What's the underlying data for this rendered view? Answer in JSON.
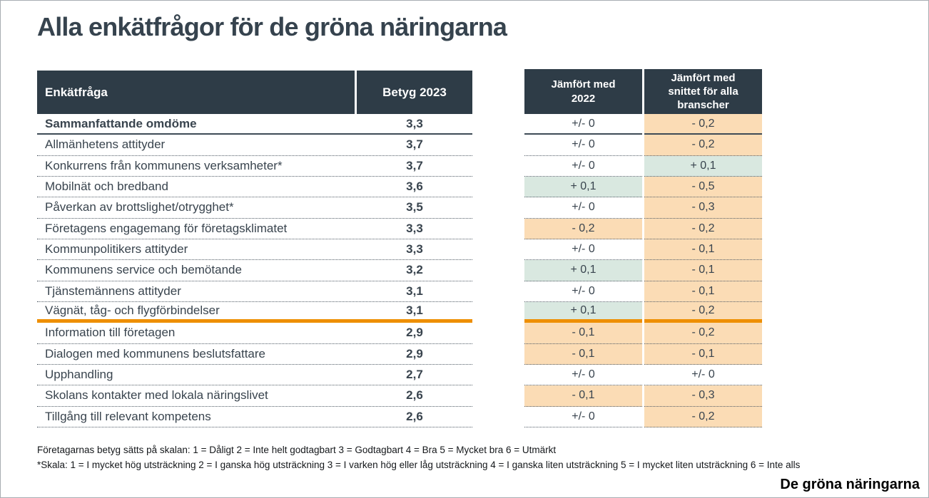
{
  "chart_data": {
    "type": "table",
    "title": "Alla enkätfrågor för de gröna näringarna",
    "columns": [
      "Enkätfråga",
      "Betyg 2023",
      "Jämfört med 2022",
      "Jämfört med snittet för alla branscher"
    ],
    "rows": [
      {
        "question": "Sammanfattande omdöme",
        "betyg": "3,3",
        "vs_2022": "+/- 0",
        "vs_2022_bg": "white",
        "vs_snitt": "- 0,2",
        "vs_snitt_bg": "orange",
        "emphasis": true,
        "separator_after": "solid"
      },
      {
        "question": "Allmänhetens attityder",
        "betyg": "3,7",
        "vs_2022": "+/- 0",
        "vs_2022_bg": "white",
        "vs_snitt": "- 0,2",
        "vs_snitt_bg": "orange"
      },
      {
        "question": "Konkurrens från kommunens verksamheter*",
        "betyg": "3,7",
        "vs_2022": "+/- 0",
        "vs_2022_bg": "white",
        "vs_snitt": "+ 0,1",
        "vs_snitt_bg": "green"
      },
      {
        "question": "Mobilnät och bredband",
        "betyg": "3,6",
        "vs_2022": "+ 0,1",
        "vs_2022_bg": "green",
        "vs_snitt": "- 0,5",
        "vs_snitt_bg": "orange"
      },
      {
        "question": "Påverkan av brottslighet/otrygghet*",
        "betyg": "3,5",
        "vs_2022": "+/- 0",
        "vs_2022_bg": "white",
        "vs_snitt": "- 0,3",
        "vs_snitt_bg": "orange"
      },
      {
        "question": "Företagens engagemang för företagsklimatet",
        "betyg": "3,3",
        "vs_2022": "- 0,2",
        "vs_2022_bg": "orange",
        "vs_snitt": "- 0,2",
        "vs_snitt_bg": "orange"
      },
      {
        "question": "Kommunpolitikers attityder",
        "betyg": "3,3",
        "vs_2022": "+/- 0",
        "vs_2022_bg": "white",
        "vs_snitt": "- 0,1",
        "vs_snitt_bg": "orange"
      },
      {
        "question": "Kommunens service och bemötande",
        "betyg": "3,2",
        "vs_2022": "+ 0,1",
        "vs_2022_bg": "green",
        "vs_snitt": "- 0,1",
        "vs_snitt_bg": "orange"
      },
      {
        "question": "Tjänstemännens attityder",
        "betyg": "3,1",
        "vs_2022": "+/- 0",
        "vs_2022_bg": "white",
        "vs_snitt": "- 0,1",
        "vs_snitt_bg": "orange"
      },
      {
        "question": "Vägnät, tåg- och flygförbindelser",
        "betyg": "3,1",
        "vs_2022": "+ 0,1",
        "vs_2022_bg": "green",
        "vs_snitt": "- 0,2",
        "vs_snitt_bg": "orange",
        "separator_after": "orange"
      },
      {
        "question": "Information till företagen",
        "betyg": "2,9",
        "vs_2022": "- 0,1",
        "vs_2022_bg": "orange",
        "vs_snitt": "- 0,2",
        "vs_snitt_bg": "orange"
      },
      {
        "question": "Dialogen med kommunens beslutsfattare",
        "betyg": "2,9",
        "vs_2022": "- 0,1",
        "vs_2022_bg": "orange",
        "vs_snitt": "- 0,1",
        "vs_snitt_bg": "orange"
      },
      {
        "question": "Upphandling",
        "betyg": "2,7",
        "vs_2022": "+/- 0",
        "vs_2022_bg": "white",
        "vs_snitt": "+/- 0",
        "vs_snitt_bg": "white"
      },
      {
        "question": "Skolans kontakter med lokala näringslivet",
        "betyg": "2,6",
        "vs_2022": "- 0,1",
        "vs_2022_bg": "orange",
        "vs_snitt": "- 0,3",
        "vs_snitt_bg": "orange"
      },
      {
        "question": "Tillgång till relevant kompetens",
        "betyg": "2,6",
        "vs_2022": "+/- 0",
        "vs_2022_bg": "white",
        "vs_snitt": "- 0,2",
        "vs_snitt_bg": "orange"
      }
    ]
  },
  "footnotes": [
    "Företagarnas betyg sätts på skalan: 1 = Dåligt 2 = Inte helt godtagbart 3 = Godtagbart 4 = Bra 5 = Mycket bra 6 = Utmärkt",
    "*Skala: 1 = I mycket hög utsträckning 2 = I ganska hög utsträckning 3 = I varken hög eller låg utsträckning 4 = I ganska liten utsträckning 5 = I mycket liten utsträckning 6 = Inte alls"
  ],
  "brand": "De gröna näringarna",
  "colors": {
    "header_bg": "#2e3c47",
    "body_text": "#39444e",
    "orange_cell": "#fbdcb5",
    "green_cell": "#d9e8e0",
    "accent_orange": "#ee8f00"
  }
}
